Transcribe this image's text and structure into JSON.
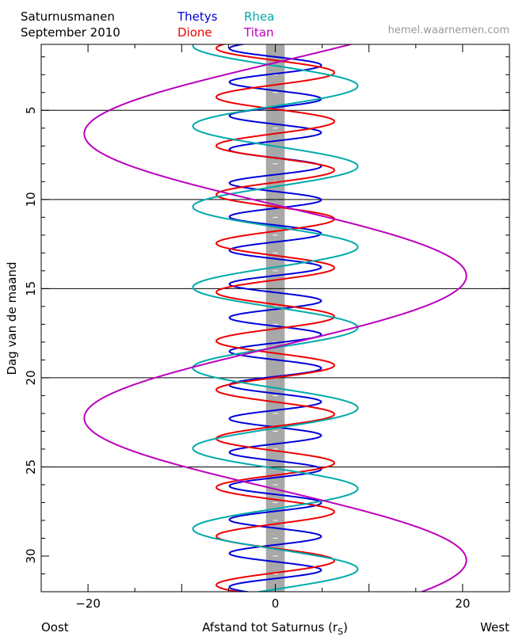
{
  "header": {
    "title_line1": "Saturnusmanen",
    "title_line2": "September 2010",
    "watermark": "hemel.waarnemen.com"
  },
  "footer": {
    "left_label": "Oost",
    "right_label": "West"
  },
  "chart_data": {
    "type": "line",
    "title": "Saturnusmanen September 2010",
    "xlabel": "Afstand tot Saturnus (r",
    "xlabel_subscript": "S",
    "xlabel_close": ")",
    "ylabel": "Dag van de maand",
    "xlim": [
      -25,
      25
    ],
    "ylim": [
      1.3,
      32
    ],
    "y_inverted": true,
    "x_ticks": [
      -20,
      0,
      20
    ],
    "x_tick_labels": [
      "−20",
      "0",
      "20"
    ],
    "y_ticks": [
      5,
      10,
      15,
      20,
      25,
      30
    ],
    "y_tick_labels": [
      "5",
      "10",
      "15",
      "20",
      "25",
      "30"
    ],
    "grid_lines_y": [
      5,
      10,
      15,
      20,
      25
    ],
    "planet_band_halfwidth": 1,
    "planet_band_color": "#a8a8a8",
    "legend": {
      "position": "top-left",
      "entries": [
        {
          "name": "Thetys",
          "color": "#0000dd"
        },
        {
          "name": "Dione",
          "color": "#ee0000"
        },
        {
          "name": "Rhea",
          "color": "#00aaaa"
        },
        {
          "name": "Titan",
          "color": "#bb00bb"
        }
      ]
    },
    "series": [
      {
        "name": "Thetys",
        "color": "#0000dd",
        "amplitude": 4.9,
        "period_days": 1.8878,
        "phase_day": 2.0
      },
      {
        "name": "Dione",
        "color": "#ee0000",
        "amplitude": 6.3,
        "period_days": 2.7369,
        "phase_day": 2.2
      },
      {
        "name": "Rhea",
        "color": "#00aaaa",
        "amplitude": 8.8,
        "period_days": 4.5175,
        "phase_day": 2.5
      },
      {
        "name": "Titan",
        "color": "#bb00bb",
        "amplitude": 20.4,
        "period_days": 15.9454,
        "phase_day": 10.3
      }
    ]
  }
}
